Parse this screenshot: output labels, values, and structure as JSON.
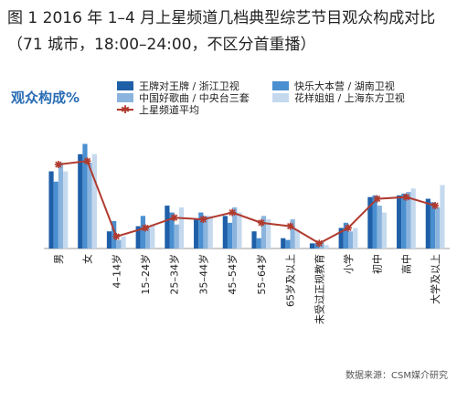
{
  "chart_data": {
    "type": "bar",
    "title": "图 1 2016 年 1–4 月上星频道几档典型综艺节目观众构成对比（71 城市，18:00–24:00，不区分首重播）",
    "y_label": "观众构成%",
    "source": "数据来源：CSM媒介研究",
    "categories": [
      "男",
      "女",
      "4–14岁",
      "15–24岁",
      "25–34岁",
      "35–44岁",
      "45–54岁",
      "55–64岁",
      "65岁及以上",
      "未受过正规教育",
      "小学",
      "初中",
      "高中",
      "大学及以上"
    ],
    "series": [
      {
        "name": "王牌对王牌 / 浙江卫视",
        "color": "#1f5fa8",
        "values": [
          45,
          55,
          10,
          13,
          25,
          17,
          19,
          10,
          6,
          3,
          12,
          30,
          31,
          29
        ]
      },
      {
        "name": "快乐大本营 / 湖南卫视",
        "color": "#4a8fd0",
        "values": [
          39,
          61,
          16,
          19,
          21,
          21,
          15,
          6,
          5,
          3,
          15,
          31,
          32,
          27
        ]
      },
      {
        "name": "中国好歌曲 / 中央台三套",
        "color": "#8ab4dd",
        "values": [
          50,
          50,
          5,
          12,
          14,
          19,
          24,
          19,
          17,
          4,
          10,
          25,
          33,
          24
        ]
      },
      {
        "name": "花样姐姐 / 上海东方卫视",
        "color": "#c5d9ee",
        "values": [
          45,
          55,
          7,
          14,
          24,
          19,
          21,
          17,
          11,
          2,
          12,
          21,
          35,
          37
        ]
      },
      {
        "name": "上星频道平均",
        "type": "line",
        "color": "#b03a2e",
        "values": [
          49,
          51,
          7,
          12,
          18,
          17,
          21,
          15,
          13,
          3,
          12,
          29,
          30,
          25
        ]
      }
    ],
    "ylim": [
      0,
      65
    ]
  }
}
